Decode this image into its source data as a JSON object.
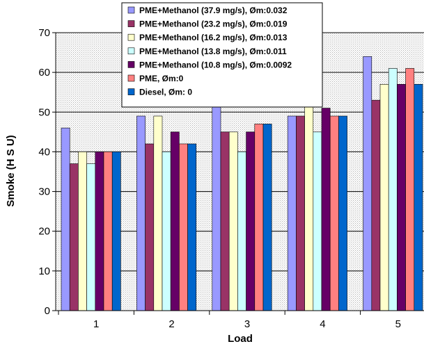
{
  "chart_data": {
    "type": "bar",
    "title": "",
    "xlabel": "Load",
    "ylabel": "Smoke (H S U)",
    "categories": [
      "1",
      "2",
      "3",
      "4",
      "5"
    ],
    "ylim": [
      0,
      70
    ],
    "yticks": [
      0,
      10,
      20,
      30,
      40,
      50,
      60,
      70
    ],
    "grid": true,
    "legend_position": "top",
    "series": [
      {
        "name": "PME+Methanol (37.9 mg/s), Øm:0.032",
        "color": "#9999ff",
        "values": [
          46,
          49,
          53,
          49,
          64
        ]
      },
      {
        "name": "PME+Methanol (23.2 mg/s), Øm:0.019",
        "color": "#993366",
        "values": [
          37,
          42,
          45,
          49,
          53
        ]
      },
      {
        "name": "PME+Methanol (16.2 mg/s), Øm:0.013",
        "color": "#ffffcc",
        "values": [
          40,
          49,
          45,
          53,
          57
        ]
      },
      {
        "name": "PME+Methanol (13.8 mg/s), Øm:0.011",
        "color": "#ccffff",
        "values": [
          37,
          40,
          40,
          45,
          61
        ]
      },
      {
        "name": "PME+Methanol (10.8 mg/s), Øm:0.0092",
        "color": "#660066",
        "values": [
          40,
          45,
          45,
          51,
          57
        ]
      },
      {
        "name": "PME, Øm:0",
        "color": "#ff8080",
        "values": [
          40,
          42,
          47,
          49,
          61
        ]
      },
      {
        "name": "Diesel, Øm: 0",
        "color": "#0066cc",
        "values": [
          40,
          42,
          47,
          49,
          57
        ]
      }
    ]
  }
}
